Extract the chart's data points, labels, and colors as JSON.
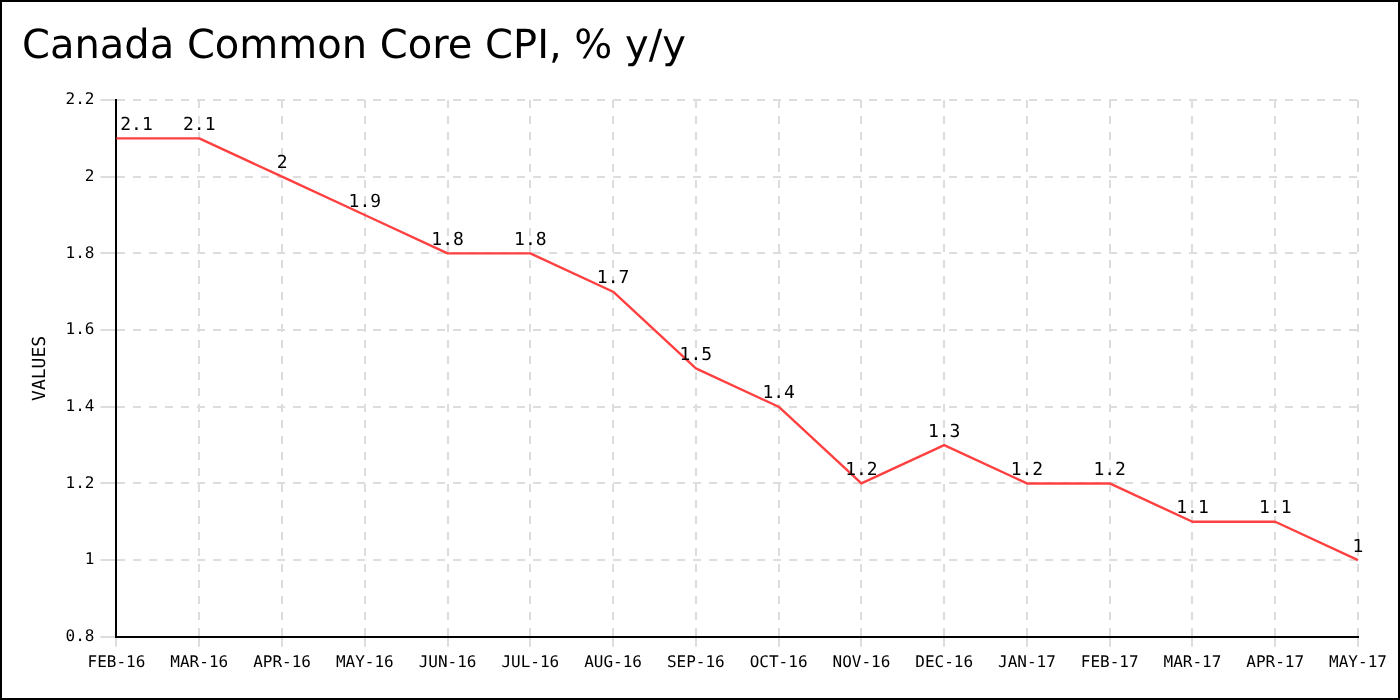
{
  "chart_data": {
    "type": "line",
    "title": "Canada Common Core CPI, % y/y",
    "ylabel": "VALUES",
    "categories": [
      "FEB-16",
      "MAR-16",
      "APR-16",
      "MAY-16",
      "JUN-16",
      "JUL-16",
      "AUG-16",
      "SEP-16",
      "OCT-16",
      "NOV-16",
      "DEC-16",
      "JAN-17",
      "FEB-17",
      "MAR-17",
      "APR-17",
      "MAY-17"
    ],
    "values": [
      2.1,
      2.1,
      2,
      1.9,
      1.8,
      1.8,
      1.7,
      1.5,
      1.4,
      1.2,
      1.3,
      1.2,
      1.2,
      1.1,
      1.1,
      1
    ],
    "color": "#ff4040",
    "ylim": [
      0.8,
      2.2
    ],
    "yticks": [
      0.8,
      1,
      1.2,
      1.4,
      1.6,
      1.8,
      2,
      2.2
    ],
    "grid": true,
    "data_labels": true,
    "marker": "none",
    "line_style": "solid"
  }
}
